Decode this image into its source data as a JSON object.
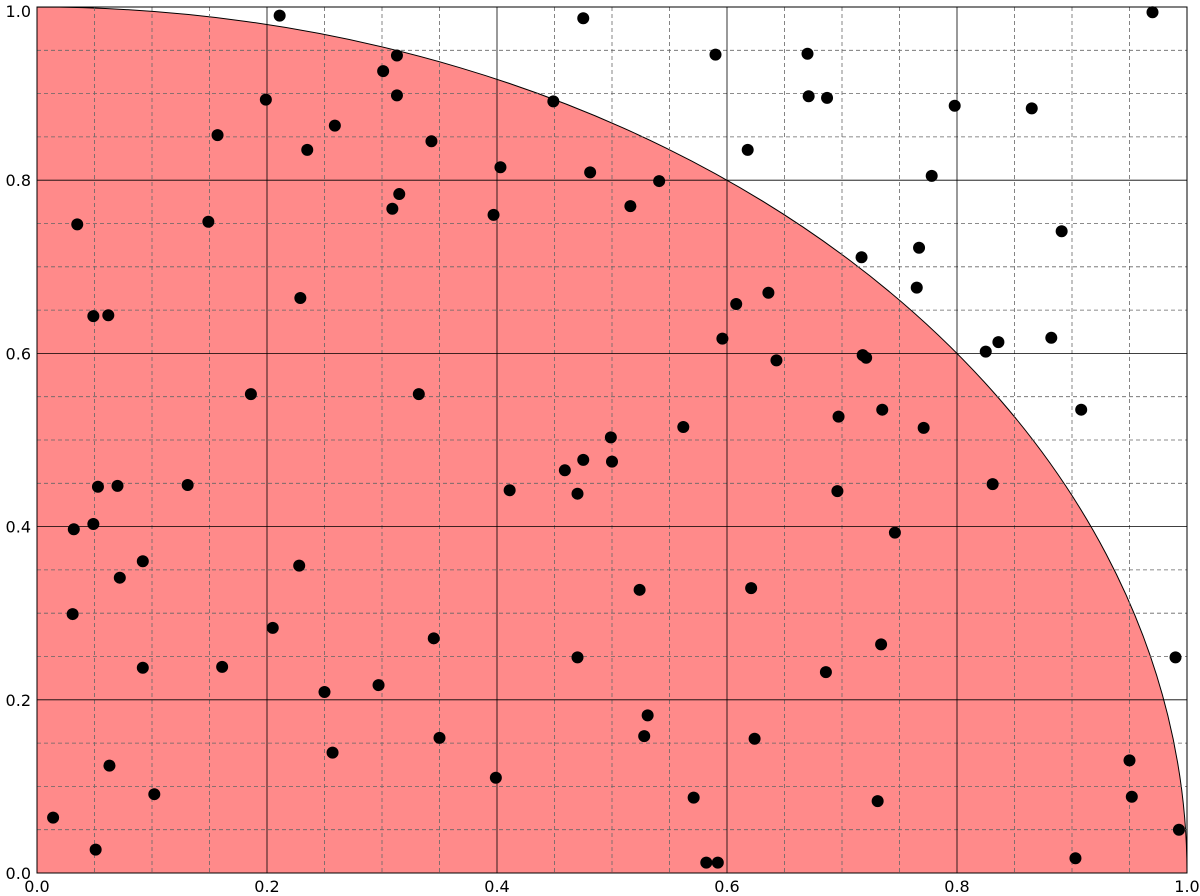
{
  "chart_data": {
    "type": "scatter",
    "circle": {
      "radius": 1,
      "color": "#ff8a8a"
    },
    "color": "#000000",
    "x": [
      0.211,
      0.475,
      0.97,
      0.59,
      0.67,
      0.313,
      0.301,
      0.199,
      0.313,
      0.449,
      0.671,
      0.687,
      0.798,
      0.865,
      0.157,
      0.259,
      0.235,
      0.343,
      0.618,
      0.403,
      0.481,
      0.778,
      0.541,
      0.315,
      0.309,
      0.516,
      0.397,
      0.035,
      0.149,
      0.891,
      0.767,
      0.717,
      0.765,
      0.229,
      0.636,
      0.608,
      0.049,
      0.062,
      0.596,
      0.882,
      0.836,
      0.825,
      0.718,
      0.721,
      0.643,
      0.186,
      0.332,
      0.908,
      0.735,
      0.697,
      0.771,
      0.562,
      0.499,
      0.459,
      0.475,
      0.5,
      0.47,
      0.053,
      0.07,
      0.131,
      0.411,
      0.696,
      0.831,
      0.049,
      0.032,
      0.746,
      0.092,
      0.228,
      0.072,
      0.524,
      0.621,
      0.031,
      0.205,
      0.345,
      0.734,
      0.161,
      0.092,
      0.47,
      0.99,
      0.686,
      0.297,
      0.25,
      0.531,
      0.257,
      0.35,
      0.528,
      0.624,
      0.95,
      0.063,
      0.399,
      0.102,
      0.571,
      0.731,
      0.952,
      0.014,
      0.993,
      0.051,
      0.903,
      0.582,
      0.592
    ],
    "y": [
      0.99,
      0.987,
      0.994,
      0.945,
      0.946,
      0.944,
      0.926,
      0.893,
      0.898,
      0.891,
      0.897,
      0.895,
      0.886,
      0.883,
      0.852,
      0.863,
      0.835,
      0.845,
      0.835,
      0.815,
      0.809,
      0.805,
      0.799,
      0.784,
      0.767,
      0.77,
      0.76,
      0.749,
      0.752,
      0.741,
      0.722,
      0.711,
      0.676,
      0.664,
      0.67,
      0.657,
      0.643,
      0.644,
      0.617,
      0.618,
      0.613,
      0.602,
      0.598,
      0.595,
      0.592,
      0.553,
      0.553,
      0.535,
      0.535,
      0.527,
      0.514,
      0.515,
      0.503,
      0.465,
      0.477,
      0.475,
      0.438,
      0.446,
      0.447,
      0.448,
      0.442,
      0.441,
      0.449,
      0.403,
      0.397,
      0.393,
      0.36,
      0.355,
      0.341,
      0.327,
      0.329,
      0.299,
      0.283,
      0.271,
      0.264,
      0.238,
      0.237,
      0.249,
      0.249,
      0.232,
      0.217,
      0.209,
      0.182,
      0.139,
      0.156,
      0.158,
      0.155,
      0.13,
      0.124,
      0.11,
      0.091,
      0.087,
      0.083,
      0.088,
      0.064,
      0.05,
      0.027,
      0.017,
      0.012,
      0.012
    ],
    "xlim": [
      0,
      1
    ],
    "ylim": [
      0,
      1
    ],
    "xticks": [
      {
        "value": 0,
        "label": "0.0"
      },
      {
        "value": 0.2,
        "label": "0.2"
      },
      {
        "value": 0.4,
        "label": "0.4"
      },
      {
        "value": 0.6,
        "label": "0.6"
      },
      {
        "value": 0.8,
        "label": "0.8"
      },
      {
        "value": 1,
        "label": "1.0"
      }
    ],
    "yticks": [
      {
        "value": 0,
        "label": "0.0"
      },
      {
        "value": 0.2,
        "label": "0.2"
      },
      {
        "value": 0.4,
        "label": "0.4"
      },
      {
        "value": 0.6,
        "label": "0.6"
      },
      {
        "value": 0.8,
        "label": "0.8"
      },
      {
        "value": 1,
        "label": "1.0"
      }
    ],
    "minor_xticks": [
      0.05,
      0.1,
      0.15,
      0.25,
      0.3,
      0.35,
      0.45,
      0.5,
      0.55,
      0.65,
      0.7,
      0.75,
      0.85,
      0.9,
      0.95
    ],
    "minor_yticks": [
      0.05,
      0.1,
      0.15,
      0.25,
      0.3,
      0.35,
      0.45,
      0.5,
      0.55,
      0.65,
      0.7,
      0.75,
      0.85,
      0.9,
      0.95
    ],
    "grid": true
  }
}
